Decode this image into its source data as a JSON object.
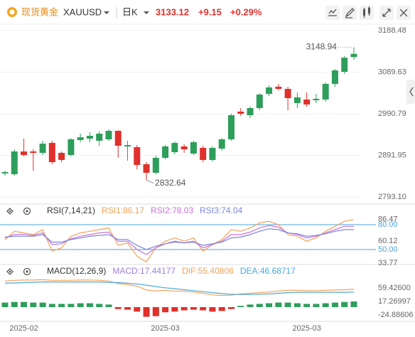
{
  "header": {
    "name": "现货黄金",
    "symbol": "XAUUSD",
    "period": "日K",
    "price": "3133.12",
    "change": "+9.15",
    "change_pct": "+0.29%"
  },
  "chart_data": [
    {
      "type": "candlestick",
      "categories": [
        null,
        null,
        "2025-02",
        null,
        null,
        null,
        null,
        null,
        null,
        null,
        null,
        null,
        null,
        null,
        null,
        null,
        null,
        "2025-03",
        null,
        null,
        null,
        null,
        null,
        null,
        null,
        null,
        null,
        null,
        null,
        null,
        null,
        null,
        "2025-03",
        null,
        null,
        null,
        null,
        null
      ],
      "open": [
        2848.9,
        2847.2,
        2901.2,
        2901.2,
        2897.9,
        2921.5,
        2897.9,
        2892.8,
        2928.3,
        2931.7,
        2926.6,
        2930.0,
        2950.2,
        2913.1,
        2911.4,
        2870.8,
        2850.5,
        2886.0,
        2899.5,
        2913.1,
        2896.2,
        2909.7,
        2881.0,
        2908.0,
        2930.0,
        2995.9,
        2987.4,
        3004.3,
        3038.1,
        3055.0,
        3049.9,
        3016.1,
        3024.6,
        3022.9,
        3024.6,
        3061.8,
        3090.5,
        3125.5
      ],
      "high": [
        2855.6,
        2906.3,
        2931.7,
        2906.3,
        2926.6,
        2926.6,
        2901.2,
        2933.3,
        2943.5,
        2946.9,
        2948.5,
        2953.6,
        2951.9,
        2926.6,
        2916.4,
        2875.9,
        2891.1,
        2916.4,
        2924.9,
        2918.1,
        2926.6,
        2914.8,
        2913.1,
        2933.3,
        2990.8,
        3004.3,
        3007.7,
        3039.8,
        3058.4,
        3061.8,
        3055.0,
        3041.5,
        3041.5,
        3038.1,
        3065.1,
        3097.2,
        3128.0,
        3148.94
      ],
      "low": [
        2843.8,
        2843.8,
        2889.4,
        2855.6,
        2892.8,
        2870.8,
        2875.9,
        2889.4,
        2923.2,
        2923.2,
        2914.8,
        2926.6,
        2886.0,
        2879.3,
        2859.0,
        2832.64,
        2847.2,
        2882.7,
        2894.5,
        2897.9,
        2892.8,
        2875.9,
        2877.6,
        2902.9,
        2926.6,
        2985.7,
        2980.7,
        2999.2,
        3033.0,
        3046.6,
        2999.2,
        3004.3,
        3007.7,
        3016.1,
        3019.5,
        3055.0,
        3085.4,
        3119.0
      ],
      "close": [
        2852.2,
        2901.2,
        2892.8,
        2897.9,
        2919.8,
        2875.9,
        2881.0,
        2930.0,
        2935.0,
        2938.4,
        2943.5,
        2950.2,
        2914.8,
        2916.4,
        2869.1,
        2850.5,
        2886.0,
        2913.1,
        2921.5,
        2906.3,
        2923.2,
        2881.0,
        2909.7,
        2930.0,
        2987.4,
        2990.8,
        3004.3,
        3036.4,
        3053.3,
        3049.9,
        3028.0,
        3029.7,
        3012.8,
        3026.3,
        3061.8,
        3093.9,
        3123.97,
        3133.12
      ],
      "up_color": "#2e9e5b",
      "down_color": "#e0302b",
      "high_label": "3148.94",
      "low_label": "2832.64",
      "ylim": [
        2779.6,
        3202.0
      ],
      "yticks": [
        {
          "value": 2793.1,
          "label": "2793.10"
        },
        2891.95,
        2990.79,
        3089.63,
        3188.48
      ],
      "grid": true
    },
    {
      "type": "line",
      "title": "RSI(7,14,21)",
      "series": [
        {
          "name": "RSI1:86.17",
          "color": "#f2a25a",
          "values": [
            62,
            72,
            70,
            68,
            74,
            48,
            52,
            66,
            70,
            72,
            74,
            76,
            55,
            58,
            42,
            35,
            52,
            60,
            64,
            60,
            64,
            48,
            56,
            62,
            74,
            72,
            76,
            82,
            84,
            80,
            68,
            66,
            60,
            64,
            72,
            78,
            84,
            86.17
          ]
        },
        {
          "name": "RSI2:78.03",
          "color": "#c774d6",
          "values": [
            64,
            68,
            68,
            67,
            70,
            56,
            57,
            63,
            66,
            68,
            70,
            71,
            60,
            60,
            50,
            44,
            52,
            57,
            60,
            58,
            60,
            52,
            56,
            60,
            68,
            68,
            71,
            76,
            79,
            77,
            70,
            68,
            64,
            66,
            70,
            74,
            78,
            78.03
          ]
        },
        {
          "name": "RSI3:74.04",
          "color": "#7b86e0",
          "values": [
            65,
            66,
            66,
            66,
            68,
            59,
            59,
            62,
            64,
            66,
            67,
            68,
            62,
            62,
            55,
            50,
            54,
            57,
            59,
            58,
            59,
            55,
            57,
            59,
            64,
            65,
            68,
            72,
            75,
            74,
            70,
            69,
            66,
            67,
            69,
            72,
            74,
            74.04
          ]
        }
      ],
      "ylim": [
        33.7,
        89.4
      ],
      "yticks": [
        33.77,
        {
          "value": 50,
          "label": "50.00",
          "color": "#4aa3df"
        },
        60.12,
        {
          "value": 80,
          "label": "80.00",
          "color": "#4aa3df"
        },
        86.47
      ]
    },
    {
      "type": "macd",
      "title": "MACD(12,26,9)",
      "histogram": {
        "name": "MACD:17.44177",
        "color": "#9b7fe0",
        "up_color": "#2e9e5b",
        "down_color": "#e0302b",
        "values": [
          14,
          16,
          16,
          14,
          14,
          10,
          10,
          10,
          12,
          12,
          10,
          8,
          -6,
          -8,
          -14,
          -30,
          -28,
          -16,
          -14,
          -10,
          -8,
          -10,
          -14,
          -12,
          -6,
          4,
          8,
          10,
          12,
          14,
          14,
          12,
          10,
          10,
          12,
          14,
          16,
          17.44177
        ]
      },
      "series": [
        {
          "name": "DIF:55.40806",
          "color": "#f2a25a",
          "values": [
            81,
            83,
            84,
            84,
            85,
            83,
            83,
            83,
            84,
            84,
            83,
            81,
            73,
            70,
            65,
            53,
            50,
            52,
            50,
            49,
            47,
            43,
            38,
            36,
            37,
            41,
            43,
            45,
            47,
            50,
            52,
            52,
            51,
            51,
            52,
            53,
            54,
            55.40806
          ]
        },
        {
          "name": "DEA:46.68717",
          "color": "#4aa8d8",
          "values": [
            74,
            75,
            76,
            77,
            78,
            78,
            78,
            78,
            78,
            78,
            78,
            77,
            76,
            74,
            72,
            68,
            64,
            60,
            57,
            54,
            51,
            48,
            45,
            42,
            40,
            39,
            39,
            40,
            41,
            43,
            45,
            46,
            46,
            46,
            46,
            46,
            46,
            46.68717
          ]
        }
      ],
      "ylim": [
        -42,
        97
      ],
      "yticks": [
        -24.88606,
        17.26997,
        {
          "value": 59.426,
          "label": "59.42600"
        }
      ]
    }
  ]
}
